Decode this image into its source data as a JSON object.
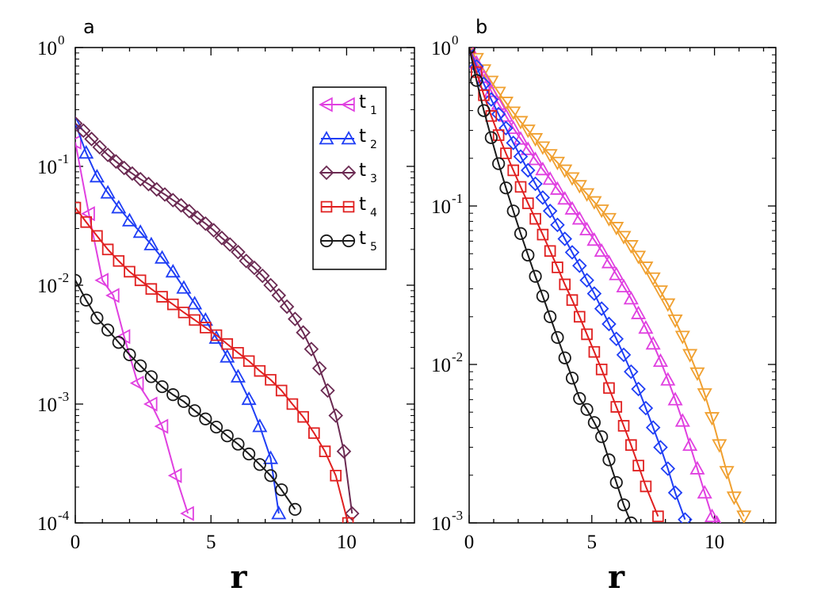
{
  "chart_data": [
    {
      "type": "line",
      "panel_label": "a",
      "xlabel": "r",
      "ylabel": "",
      "xlim": [
        0,
        12.5
      ],
      "ylim_log10": [
        -4,
        0
      ],
      "yscale": "log",
      "x_ticks": [
        0,
        5,
        10
      ],
      "x_tick_labels": [
        "0",
        "5",
        "10"
      ],
      "y_ticks": [
        {
          "base": "10",
          "exp": "0",
          "value": 1
        },
        {
          "base": "10",
          "exp": "-1",
          "value": 0.1
        },
        {
          "base": "10",
          "exp": "-2",
          "value": 0.01
        },
        {
          "base": "10",
          "exp": "-3",
          "value": 0.001
        },
        {
          "base": "10",
          "exp": "-4",
          "value": 0.0001
        }
      ],
      "legend_position": "top-right",
      "series": [
        {
          "name": "t",
          "sub": "1",
          "marker": "triangle-left",
          "color": "#e040e0",
          "x": [
            0.0,
            0.5,
            1.0,
            1.4,
            1.8,
            2.3,
            2.8,
            3.2,
            3.7,
            4.15
          ],
          "y": [
            0.16,
            0.04,
            0.011,
            0.0082,
            0.0037,
            0.0015,
            0.001,
            0.00065,
            0.00025,
            0.00012
          ]
        },
        {
          "name": "t",
          "sub": "2",
          "marker": "triangle-up",
          "color": "#1f3ef5",
          "x": [
            0.0,
            0.4,
            0.8,
            1.2,
            1.6,
            2.0,
            2.4,
            2.8,
            3.2,
            3.6,
            4.0,
            4.4,
            4.8,
            5.2,
            5.6,
            6.0,
            6.4,
            6.8,
            7.2,
            7.5
          ],
          "y": [
            0.23,
            0.13,
            0.082,
            0.06,
            0.045,
            0.035,
            0.028,
            0.022,
            0.017,
            0.013,
            0.0095,
            0.007,
            0.0051,
            0.0036,
            0.0025,
            0.0017,
            0.0011,
            0.00065,
            0.00035,
            0.00012
          ]
        },
        {
          "name": "t",
          "sub": "3",
          "marker": "diamond",
          "color": "#6b2a52",
          "x": [
            0.0,
            0.3,
            0.6,
            0.9,
            1.2,
            1.5,
            1.8,
            2.1,
            2.4,
            2.7,
            3.0,
            3.3,
            3.6,
            3.9,
            4.2,
            4.5,
            4.8,
            5.1,
            5.4,
            5.7,
            6.0,
            6.3,
            6.6,
            6.9,
            7.2,
            7.5,
            7.8,
            8.1,
            8.4,
            8.7,
            9.0,
            9.3,
            9.6,
            9.9,
            10.2
          ],
          "y": [
            0.23,
            0.2,
            0.17,
            0.145,
            0.125,
            0.11,
            0.097,
            0.087,
            0.078,
            0.071,
            0.064,
            0.058,
            0.052,
            0.047,
            0.042,
            0.037,
            0.033,
            0.029,
            0.025,
            0.022,
            0.019,
            0.016,
            0.014,
            0.012,
            0.01,
            0.0082,
            0.0066,
            0.0052,
            0.004,
            0.0029,
            0.002,
            0.0013,
            0.0008,
            0.0004,
            0.00012
          ]
        },
        {
          "name": "t",
          "sub": "4",
          "marker": "square",
          "color": "#e02020",
          "x": [
            0.0,
            0.4,
            0.8,
            1.2,
            1.6,
            2.0,
            2.4,
            2.8,
            3.2,
            3.6,
            4.0,
            4.4,
            4.8,
            5.2,
            5.6,
            6.0,
            6.4,
            6.8,
            7.2,
            7.6,
            8.0,
            8.4,
            8.8,
            9.2,
            9.6,
            10.05
          ],
          "y": [
            0.045,
            0.034,
            0.026,
            0.02,
            0.016,
            0.013,
            0.011,
            0.0093,
            0.008,
            0.0069,
            0.0059,
            0.0051,
            0.0044,
            0.0038,
            0.0032,
            0.0027,
            0.0023,
            0.0019,
            0.0016,
            0.0013,
            0.001,
            0.00078,
            0.00057,
            0.0004,
            0.00025,
            0.0001
          ]
        },
        {
          "name": "t",
          "sub": "5",
          "marker": "circle",
          "color": "#1a1a1a",
          "x": [
            0.0,
            0.4,
            0.8,
            1.2,
            1.6,
            2.0,
            2.4,
            2.8,
            3.2,
            3.6,
            4.0,
            4.4,
            4.8,
            5.2,
            5.6,
            6.0,
            6.4,
            6.8,
            7.2,
            7.6,
            8.1
          ],
          "y": [
            0.011,
            0.0075,
            0.0053,
            0.0042,
            0.0033,
            0.0026,
            0.0021,
            0.0017,
            0.0014,
            0.0012,
            0.00105,
            0.00088,
            0.00075,
            0.00064,
            0.00054,
            0.00046,
            0.00038,
            0.00031,
            0.00025,
            0.00019,
            0.00013
          ]
        }
      ]
    },
    {
      "type": "line",
      "panel_label": "b",
      "xlabel": "r",
      "ylabel": "",
      "xlim": [
        0,
        12.5
      ],
      "ylim_log10": [
        -3,
        0
      ],
      "yscale": "log",
      "x_ticks": [
        0,
        5,
        10
      ],
      "x_tick_labels": [
        "0",
        "5",
        "10"
      ],
      "y_ticks": [
        {
          "base": "10",
          "exp": "0",
          "value": 1
        },
        {
          "base": "10",
          "exp": "-1",
          "value": 0.1
        },
        {
          "base": "10",
          "exp": "-2",
          "value": 0.01
        },
        {
          "base": "10",
          "exp": "-3",
          "value": 0.001
        }
      ],
      "legend_position": "none",
      "series": [
        {
          "name": "orange",
          "sub": "",
          "marker": "triangle-down",
          "color": "#f0a030",
          "x": [
            0.0,
            0.3,
            0.6,
            0.9,
            1.2,
            1.5,
            1.8,
            2.1,
            2.4,
            2.7,
            3.0,
            3.3,
            3.6,
            3.9,
            4.2,
            4.5,
            4.8,
            5.1,
            5.4,
            5.7,
            6.0,
            6.3,
            6.6,
            6.9,
            7.2,
            7.5,
            7.8,
            8.1,
            8.4,
            8.7,
            9.0,
            9.3,
            9.6,
            9.9,
            10.2,
            10.5,
            10.8,
            11.2
          ],
          "y": [
            1.0,
            0.85,
            0.72,
            0.61,
            0.52,
            0.45,
            0.39,
            0.34,
            0.3,
            0.265,
            0.235,
            0.21,
            0.188,
            0.168,
            0.15,
            0.134,
            0.119,
            0.106,
            0.094,
            0.083,
            0.073,
            0.064,
            0.056,
            0.048,
            0.041,
            0.035,
            0.029,
            0.024,
            0.019,
            0.015,
            0.0115,
            0.0088,
            0.0065,
            0.0046,
            0.0031,
            0.0021,
            0.00145,
            0.0011
          ]
        },
        {
          "name": "magenta",
          "sub": "",
          "marker": "triangle-up",
          "color": "#e040e0",
          "x": [
            0.0,
            0.3,
            0.6,
            0.9,
            1.2,
            1.5,
            1.8,
            2.1,
            2.4,
            2.7,
            3.0,
            3.3,
            3.6,
            3.9,
            4.2,
            4.5,
            4.8,
            5.1,
            5.4,
            5.7,
            6.0,
            6.3,
            6.6,
            6.9,
            7.2,
            7.5,
            7.8,
            8.1,
            8.4,
            8.7,
            9.0,
            9.3,
            9.6,
            9.9,
            10.1
          ],
          "y": [
            1.0,
            0.8,
            0.65,
            0.53,
            0.44,
            0.37,
            0.31,
            0.265,
            0.228,
            0.197,
            0.17,
            0.148,
            0.128,
            0.111,
            0.096,
            0.083,
            0.071,
            0.061,
            0.052,
            0.044,
            0.037,
            0.031,
            0.026,
            0.021,
            0.017,
            0.0135,
            0.0105,
            0.008,
            0.006,
            0.0044,
            0.0031,
            0.0022,
            0.00155,
            0.0011,
            0.001
          ]
        },
        {
          "name": "blue",
          "sub": "",
          "marker": "diamond",
          "color": "#1f3ef5",
          "x": [
            0.0,
            0.3,
            0.6,
            0.9,
            1.2,
            1.5,
            1.8,
            2.1,
            2.4,
            2.7,
            3.0,
            3.3,
            3.6,
            3.9,
            4.2,
            4.5,
            4.8,
            5.1,
            5.4,
            5.7,
            6.0,
            6.3,
            6.6,
            6.9,
            7.2,
            7.5,
            7.8,
            8.1,
            8.4,
            8.8
          ],
          "y": [
            1.0,
            0.76,
            0.59,
            0.47,
            0.38,
            0.31,
            0.25,
            0.205,
            0.168,
            0.138,
            0.113,
            0.093,
            0.076,
            0.062,
            0.051,
            0.042,
            0.034,
            0.028,
            0.0225,
            0.018,
            0.0145,
            0.0115,
            0.009,
            0.007,
            0.0053,
            0.004,
            0.003,
            0.0022,
            0.00155,
            0.00105
          ]
        },
        {
          "name": "red",
          "sub": "",
          "marker": "square",
          "color": "#e02020",
          "x": [
            0.0,
            0.3,
            0.6,
            0.9,
            1.2,
            1.5,
            1.8,
            2.1,
            2.4,
            2.7,
            3.0,
            3.3,
            3.6,
            3.9,
            4.2,
            4.5,
            4.8,
            5.1,
            5.4,
            5.7,
            6.0,
            6.3,
            6.6,
            6.9,
            7.2,
            7.7
          ],
          "y": [
            1.0,
            0.7,
            0.5,
            0.37,
            0.28,
            0.215,
            0.168,
            0.132,
            0.104,
            0.083,
            0.066,
            0.052,
            0.041,
            0.032,
            0.0255,
            0.02,
            0.0155,
            0.012,
            0.0093,
            0.0071,
            0.0054,
            0.0041,
            0.0031,
            0.0023,
            0.0017,
            0.0011
          ]
        },
        {
          "name": "black",
          "sub": "",
          "marker": "circle",
          "color": "#1a1a1a",
          "x": [
            0.0,
            0.3,
            0.6,
            0.9,
            1.2,
            1.5,
            1.8,
            2.1,
            2.4,
            2.7,
            3.0,
            3.3,
            3.6,
            3.9,
            4.2,
            4.5,
            4.8,
            5.1,
            5.4,
            5.7,
            6.0,
            6.3,
            6.6
          ],
          "y": [
            1.0,
            0.62,
            0.4,
            0.27,
            0.185,
            0.13,
            0.093,
            0.067,
            0.049,
            0.036,
            0.027,
            0.02,
            0.0148,
            0.011,
            0.0082,
            0.0061,
            0.0052,
            0.0043,
            0.0035,
            0.0025,
            0.0018,
            0.0013,
            0.001
          ]
        }
      ]
    }
  ]
}
